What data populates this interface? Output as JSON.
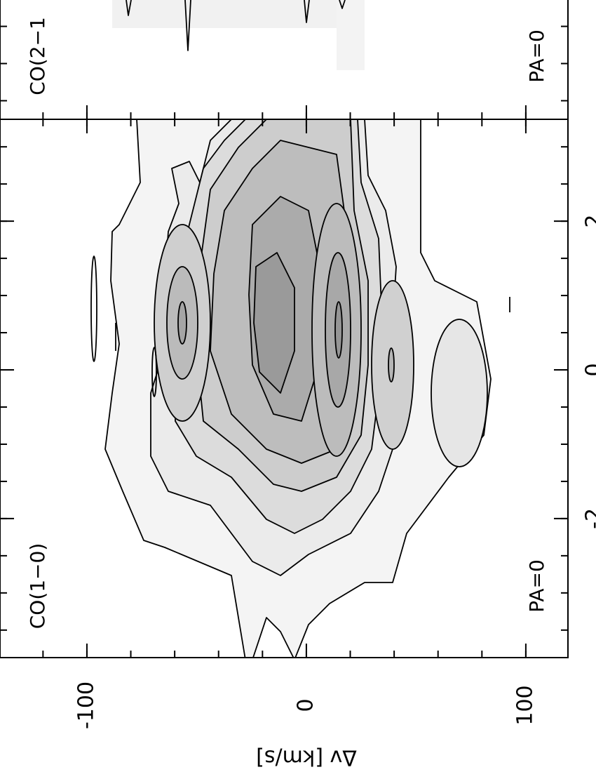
{
  "chart_data": {
    "type": "contour",
    "panels": [
      {
        "line": "CO(2−1",
        "pa": "PA=0"
      },
      {
        "line": "CO(1−0)",
        "pa": "PA=0"
      }
    ],
    "xlabel": "Δv [km/s]",
    "xlim": [
      -139.6,
      119.2
    ],
    "xticks": [
      -100,
      0,
      100
    ],
    "xminor_step": 20,
    "ylim": [
      -3.87,
      3.37
    ],
    "yticks": [
      -2,
      0,
      2
    ],
    "yminor_step": 0.5
  }
}
